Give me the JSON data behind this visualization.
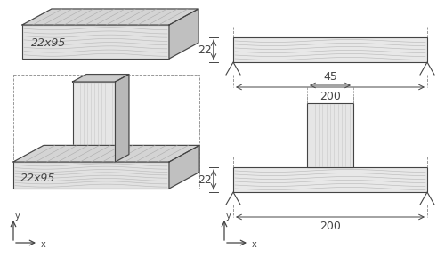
{
  "bg_color": "#ffffff",
  "lc": "#444444",
  "dc": "#888888",
  "grain_color": "#bbbbbb",
  "face_top": "#d4d4d4",
  "face_front_h": "#e2e2e2",
  "face_right": "#c0c0c0",
  "face_vert": "#e6e6e6",
  "label_22": "22",
  "label_200": "200",
  "label_45": "45",
  "label_dim": "22x95"
}
